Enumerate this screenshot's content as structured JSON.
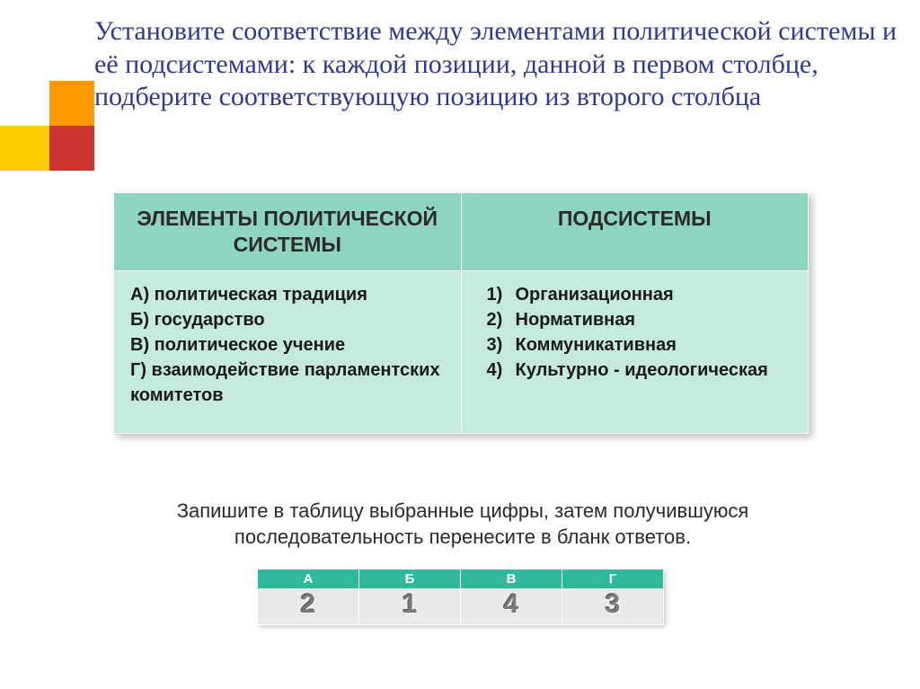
{
  "title": "Установите соответствие между  элементами политической системы и её подсистемами: к каждой позиции, данной в первом столбце, подберите соответствующую позицию из второго столбца",
  "decoration": {
    "orange": "#ff9900",
    "red": "#cc3333",
    "yellow": "#ffcc00"
  },
  "main_table": {
    "header_bg": "#8fd4c1",
    "cell_bg": "#c6e9df",
    "columns": [
      "ЭЛЕМЕНТЫ ПОЛИТИЧЕСКОЙ СИСТЕМЫ",
      "ПОДСИСТЕМЫ"
    ],
    "left_items": [
      "А) политическая традиция",
      "Б) государство",
      "В) политическое учение",
      "Г) взаимодействие парламентских комитетов"
    ],
    "right_items": [
      {
        "num": "1)",
        "text": "Организационная"
      },
      {
        "num": "2)",
        "text": "Нормативная"
      },
      {
        "num": "3)",
        "text": "Коммуникативная"
      },
      {
        "num": "4)",
        "text": "Культурно - идеологическая"
      }
    ]
  },
  "instruction": "Запишите в таблицу выбранные цифры, затем получившуюся последовательность перенесите в бланк ответов.",
  "answer_table": {
    "header_bg": "#2fb89a",
    "cell_bg": "#e9e9e9",
    "headers": [
      "А",
      "Б",
      "В",
      "Г"
    ],
    "values": [
      "2",
      "1",
      "4",
      "3"
    ]
  }
}
